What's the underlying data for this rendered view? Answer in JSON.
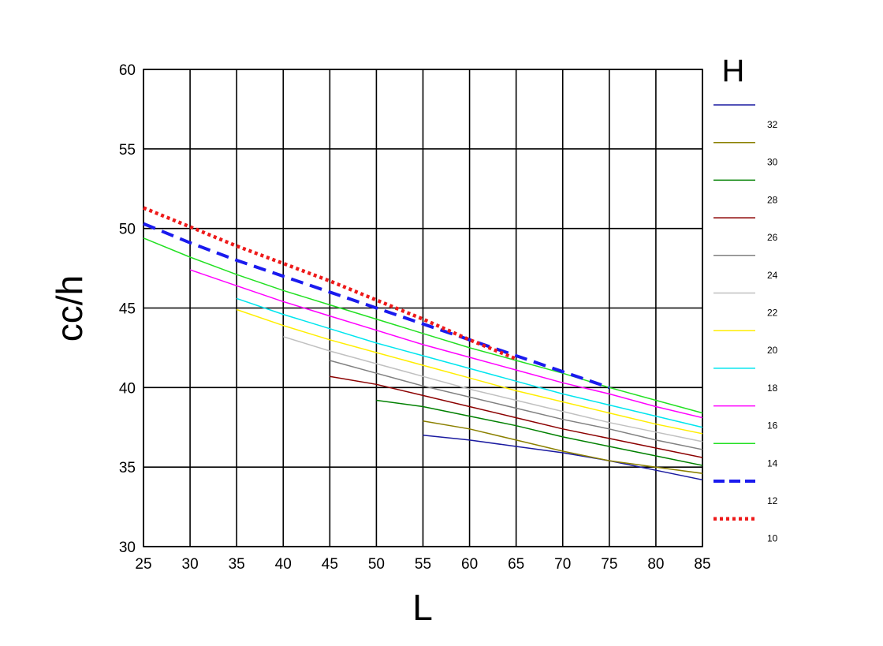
{
  "chart_data": {
    "type": "line",
    "xlabel": "L",
    "ylabel": "cc/h",
    "legend_title": "H",
    "legend_position": "right",
    "grid": true,
    "xlim": [
      25,
      85
    ],
    "ylim": [
      30,
      60
    ],
    "xticks": [
      "25",
      "30",
      "35",
      "40",
      "45",
      "50",
      "55",
      "60",
      "65",
      "70",
      "75",
      "80",
      "85"
    ],
    "yticks": [
      "30",
      "35",
      "40",
      "45",
      "50",
      "55",
      "60"
    ],
    "series": [
      {
        "name": "32",
        "color": "#1a1aa0",
        "style": "solid",
        "x": [
          55,
          60,
          65,
          70,
          75,
          80,
          85
        ],
        "y": [
          37.0,
          36.7,
          36.3,
          35.9,
          35.4,
          34.8,
          34.2
        ]
      },
      {
        "name": "30",
        "color": "#8b8000",
        "style": "solid",
        "x": [
          55,
          60,
          65,
          70,
          75,
          80,
          85
        ],
        "y": [
          37.9,
          37.4,
          36.7,
          36.0,
          35.4,
          35.0,
          34.6
        ]
      },
      {
        "name": "28",
        "color": "#008000",
        "style": "solid",
        "x": [
          50,
          55,
          60,
          65,
          70,
          75,
          80,
          85
        ],
        "y": [
          39.2,
          38.8,
          38.2,
          37.6,
          36.9,
          36.3,
          35.7,
          35.1
        ]
      },
      {
        "name": "26",
        "color": "#8b0000",
        "style": "solid",
        "x": [
          45,
          50,
          55,
          60,
          65,
          70,
          75,
          80,
          85
        ],
        "y": [
          40.7,
          40.2,
          39.5,
          38.8,
          38.1,
          37.4,
          36.8,
          36.2,
          35.6
        ]
      },
      {
        "name": "24",
        "color": "#808080",
        "style": "solid",
        "x": [
          45,
          50,
          55,
          60,
          65,
          70,
          75,
          80,
          85
        ],
        "y": [
          41.7,
          40.9,
          40.1,
          39.4,
          38.7,
          38.0,
          37.4,
          36.7,
          36.1
        ]
      },
      {
        "name": "22",
        "color": "#c0c0c0",
        "style": "solid",
        "x": [
          40,
          45,
          50,
          55,
          60,
          65,
          70,
          75,
          80,
          85
        ],
        "y": [
          43.2,
          42.3,
          41.5,
          40.7,
          39.9,
          39.2,
          38.5,
          37.8,
          37.2,
          36.6
        ]
      },
      {
        "name": "20",
        "color": "#ffee00",
        "style": "solid",
        "x": [
          35,
          40,
          45,
          50,
          55,
          60,
          65,
          70,
          75,
          80,
          85
        ],
        "y": [
          44.9,
          43.9,
          43.0,
          42.2,
          41.4,
          40.6,
          39.8,
          39.1,
          38.4,
          37.7,
          37.1
        ]
      },
      {
        "name": "18",
        "color": "#00e5ee",
        "style": "solid",
        "x": [
          35,
          40,
          45,
          50,
          55,
          60,
          65,
          70,
          75,
          80,
          85
        ],
        "y": [
          45.6,
          44.6,
          43.7,
          42.8,
          42.0,
          41.2,
          40.4,
          39.6,
          38.9,
          38.2,
          37.5
        ]
      },
      {
        "name": "16",
        "color": "#ff00ff",
        "style": "solid",
        "x": [
          30,
          35,
          40,
          45,
          50,
          55,
          60,
          65,
          70,
          75,
          80,
          85
        ],
        "y": [
          47.4,
          46.4,
          45.4,
          44.5,
          43.6,
          42.7,
          41.9,
          41.1,
          40.3,
          39.6,
          38.8,
          38.1
        ]
      },
      {
        "name": "14",
        "color": "#22e022",
        "style": "solid",
        "x": [
          25,
          30,
          35,
          40,
          45,
          50,
          55,
          60,
          65,
          70,
          75,
          80,
          85
        ],
        "y": [
          49.4,
          48.2,
          47.1,
          46.1,
          45.2,
          44.3,
          43.4,
          42.5,
          41.7,
          40.9,
          40.0,
          39.2,
          38.4
        ]
      },
      {
        "name": "12",
        "color": "#1a1aee",
        "style": "dashed",
        "x": [
          25,
          30,
          35,
          40,
          45,
          50,
          55,
          60,
          65,
          70,
          75
        ],
        "y": [
          50.3,
          49.1,
          48.0,
          47.0,
          46.0,
          45.0,
          44.0,
          43.0,
          42.0,
          41.0,
          40.0
        ]
      },
      {
        "name": "10",
        "color": "#ee1a1a",
        "style": "dotted",
        "x": [
          25,
          30,
          35,
          40,
          45,
          50,
          55,
          60,
          65
        ],
        "y": [
          51.3,
          50.1,
          48.9,
          47.8,
          46.7,
          45.5,
          44.3,
          43.0,
          41.8
        ]
      }
    ]
  }
}
